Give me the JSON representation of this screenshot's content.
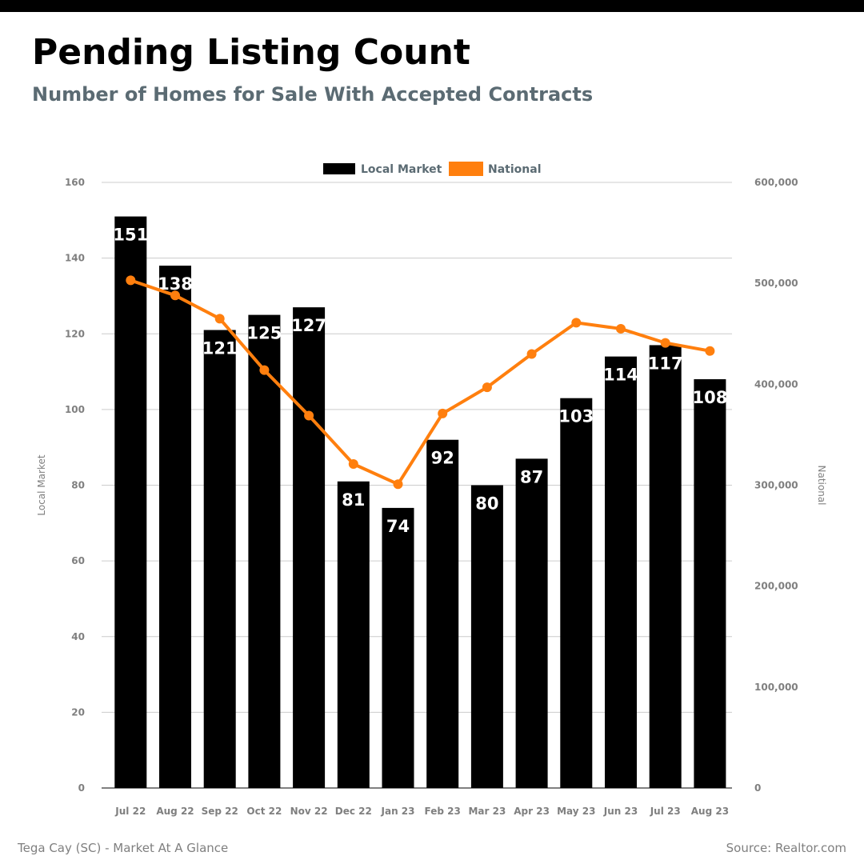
{
  "header": {
    "title": "Pending Listing Count",
    "subtitle": "Number of Homes for Sale With Accepted Contracts"
  },
  "footer": {
    "left": "Tega Cay (SC) - Market At A Glance",
    "right": "Source: Realtor.com"
  },
  "chart_data": {
    "type": "bar",
    "categories": [
      "Jul 22",
      "Aug 22",
      "Sep 22",
      "Oct 22",
      "Nov 22",
      "Dec 22",
      "Jan 23",
      "Feb 23",
      "Mar 23",
      "Apr 23",
      "May 23",
      "Jun 23",
      "Jul 23",
      "Aug 23"
    ],
    "series": [
      {
        "name": "Local Market",
        "type": "bar",
        "axis": "left",
        "color": "#000000",
        "values": [
          151,
          138,
          121,
          125,
          127,
          81,
          74,
          92,
          80,
          87,
          103,
          114,
          117,
          108
        ]
      },
      {
        "name": "National",
        "type": "line",
        "axis": "right",
        "color": "#ff7f0e",
        "values": [
          503000,
          488000,
          465000,
          414000,
          369000,
          321000,
          301000,
          371000,
          397000,
          430000,
          461000,
          455000,
          441000,
          433000
        ]
      }
    ],
    "ylabel": "Local Market",
    "y2label": "National",
    "ylim": [
      0,
      160
    ],
    "y2lim": [
      0,
      600000
    ],
    "yticks": [
      "0",
      "20",
      "40",
      "60",
      "80",
      "100",
      "120",
      "140",
      "160"
    ],
    "y2ticks": [
      "0",
      "100,000",
      "200,000",
      "300,000",
      "400,000",
      "500,000",
      "600,000"
    ],
    "grid": true,
    "legend_position": "top-center"
  }
}
